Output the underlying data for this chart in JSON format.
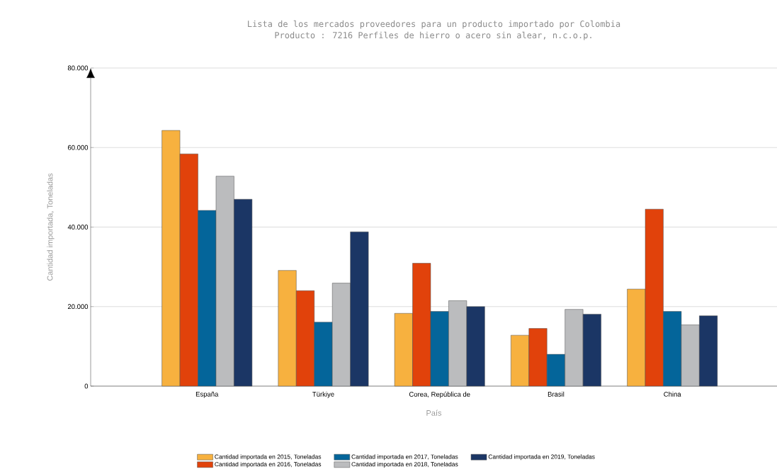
{
  "chart_data": {
    "type": "bar",
    "title": "Lista de los mercados proveedores para un producto importado por Colombia",
    "subtitle": "Producto : 7216 Perfiles de hierro o acero sin alear, n.c.o.p.",
    "xlabel": "País",
    "ylabel": "Cantidad importada, Toneladas",
    "categories": [
      "España",
      "Türkiye",
      "Corea, República de",
      "Brasil",
      "China"
    ],
    "series": [
      {
        "name": "Cantidad importada en 2015, Toneladas",
        "color": "#f7b13f",
        "values": [
          64300,
          29100,
          18300,
          12800,
          24400
        ]
      },
      {
        "name": "Cantidad importada en 2016, Toneladas",
        "color": "#e1420b",
        "values": [
          58400,
          24000,
          30900,
          14500,
          44500
        ]
      },
      {
        "name": "Cantidad importada en 2017, Toneladas",
        "color": "#04659a",
        "values": [
          44200,
          16100,
          18800,
          8000,
          18800
        ]
      },
      {
        "name": "Cantidad importada en 2018, Toneladas",
        "color": "#bbbcbe",
        "values": [
          52800,
          25900,
          21500,
          19300,
          15400
        ]
      },
      {
        "name": "Cantidad importada en 2019, Toneladas",
        "color": "#1b3665",
        "values": [
          47000,
          38800,
          20000,
          18100,
          17700
        ]
      }
    ],
    "ylim": [
      0,
      80000
    ],
    "yticks": [
      0,
      {
        "value": 20000,
        "label": "20.000"
      },
      {
        "value": 40000,
        "label": "40.000"
      },
      {
        "value": 60000,
        "label": "60.000"
      },
      {
        "value": 80000,
        "label": "80.000"
      }
    ],
    "grid": "y",
    "legend": "bottom"
  }
}
